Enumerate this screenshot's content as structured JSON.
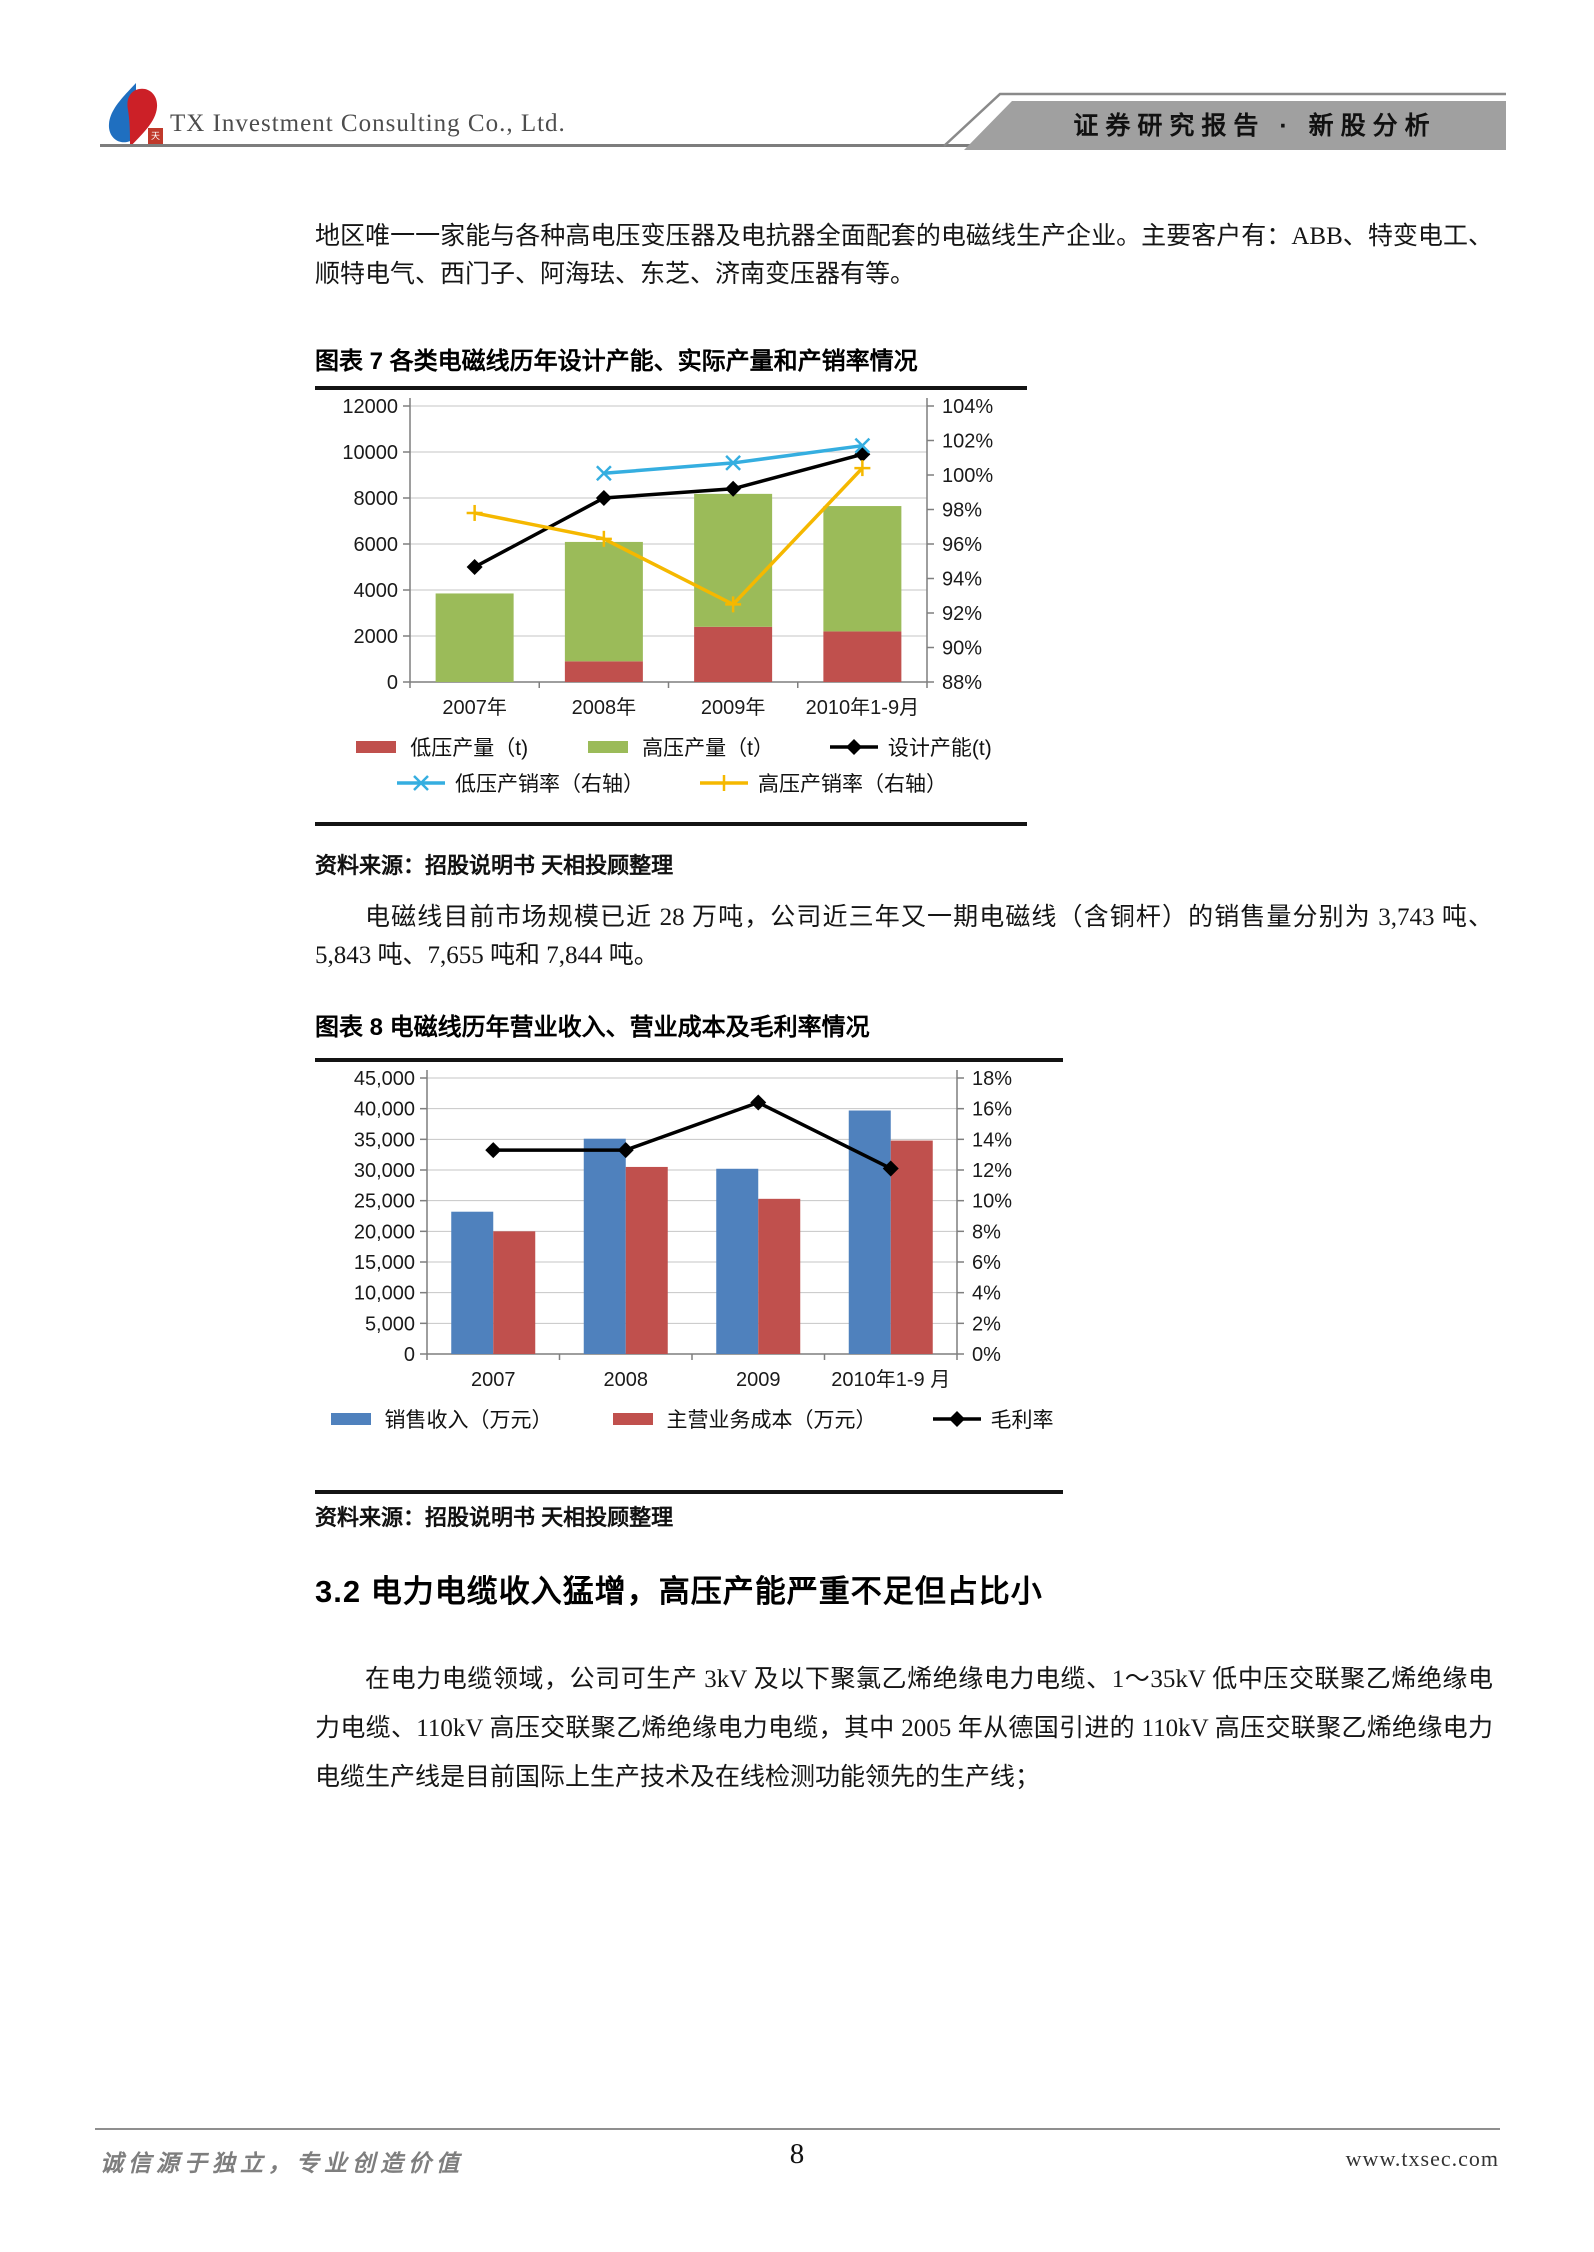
{
  "header": {
    "company": "TX Investment Consulting Co., Ltd.",
    "banner": "证券研究报告 · 新股分析"
  },
  "paragraphs": {
    "p1": "地区唯一一家能与各种高电压变压器及电抗器全面配套的电磁线生产企业。主要客户有：ABB、特变电工、顺特电气、西门子、阿海珐、东芝、济南变压器有等。",
    "p2": "电磁线目前市场规模已近 28 万吨，公司近三年又一期电磁线（含铜杆）的销售量分别为 3,743 吨、5,843 吨、7,655 吨和 7,844 吨。",
    "p3": "在电力电缆领域，公司可生产 3kV 及以下聚氯乙烯绝缘电力电缆、1～35kV 低中压交联聚乙烯绝缘电力电缆、110kV 高压交联聚乙烯绝缘电力电缆，其中 2005 年从德国引进的 110kV 高压交联聚乙烯绝缘电力电缆生产线是目前国际上生产技术及在线检测功能领先的生产线；"
  },
  "section": {
    "heading": "3.2 电力电缆收入猛增，高压产能严重不足但占比小"
  },
  "figures": [
    {
      "label": "图表 7 各类电磁线历年设计产能、实际产量和产销率情况",
      "source": "资料来源：招股说明书 天相投顾整理"
    },
    {
      "label": "图表 8 电磁线历年营业收入、营业成本及毛利率情况",
      "source": "资料来源：招股说明书 天相投顾整理"
    }
  ],
  "footer": {
    "slogan": "诚信源于独立，专业创造价值",
    "page": "8",
    "site": "www.txsec.com"
  },
  "colors": {
    "bar_red": "#C0504D",
    "bar_green": "#9BBB59",
    "bar_blue": "#4F81BD",
    "line_black": "#000000",
    "line_cyan": "#35AEE0",
    "line_yellow": "#F5B800",
    "banner_gray": "#A0A0A0",
    "gridline": "#c6c6c6"
  },
  "chart_data": [
    {
      "type": "bar",
      "subtype": "stacked bars + lines (dual axis)",
      "title": "各类电磁线历年设计产能、实际产量和产销率情况",
      "categories": [
        "2007年",
        "2008年",
        "2009年",
        "2010年1-9月"
      ],
      "left_axis": {
        "min": 0,
        "max": 12000,
        "step": 2000
      },
      "right_axis": {
        "min": 88,
        "max": 104,
        "step": 2,
        "unit": "%"
      },
      "grid": true,
      "legend_position": "bottom",
      "series": [
        {
          "name": "低压产量（t)",
          "type": "bar-stack",
          "axis": "left",
          "color": "#C0504D",
          "values": [
            0,
            900,
            2400,
            2200
          ]
        },
        {
          "name": "高压产量（t）",
          "type": "bar-stack",
          "axis": "left",
          "color": "#9BBB59",
          "values": [
            3850,
            5190,
            5780,
            5450
          ]
        },
        {
          "name": "设计产能(t)",
          "type": "line",
          "marker": "diamond",
          "axis": "left",
          "color": "#000000",
          "values": [
            5000,
            8000,
            8400,
            9900
          ]
        },
        {
          "name": "低压产销率（右轴）",
          "type": "line",
          "marker": "x",
          "axis": "right",
          "color": "#35AEE0",
          "values": [
            null,
            100.1,
            100.7,
            101.7
          ]
        },
        {
          "name": "高压产销率（右轴）",
          "type": "line",
          "marker": "plus",
          "axis": "right",
          "color": "#F5B800",
          "values": [
            97.8,
            96.3,
            92.5,
            100.4
          ]
        }
      ]
    },
    {
      "type": "bar",
      "subtype": "grouped bars + line (dual axis)",
      "title": "电磁线历年营业收入、营业成本及毛利率情况",
      "categories": [
        "2007",
        "2008",
        "2009",
        "2010年1-9 月"
      ],
      "left_axis": {
        "min": 0,
        "max": 45000,
        "step": 5000
      },
      "right_axis": {
        "min": 0,
        "max": 18,
        "step": 2,
        "unit": "%"
      },
      "grid": true,
      "legend_position": "bottom",
      "series": [
        {
          "name": "销售收入（万元）",
          "type": "bar",
          "axis": "left",
          "color": "#4F81BD",
          "values": [
            23200,
            35100,
            30200,
            39700
          ]
        },
        {
          "name": "主营业务成本（万元）",
          "type": "bar",
          "axis": "left",
          "color": "#C0504D",
          "values": [
            20000,
            30500,
            25300,
            34800
          ]
        },
        {
          "name": "毛利率",
          "type": "line",
          "marker": "diamond",
          "axis": "right",
          "color": "#000000",
          "values": [
            13.3,
            13.3,
            16.4,
            12.1
          ]
        }
      ]
    }
  ]
}
